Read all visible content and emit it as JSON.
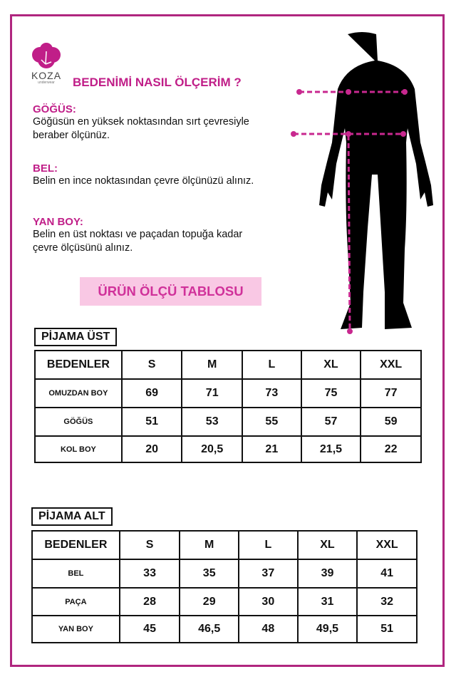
{
  "brand": {
    "name": "KOZA",
    "tagline": "underwear",
    "color": "#c01e88"
  },
  "title": "BEDENİMİ NASIL ÖLÇERİM ?",
  "sections": [
    {
      "heading": "GÖĞÜS:",
      "text": "Göğüsün en yüksek noktasından sırt çevresiyle beraber ölçünüz."
    },
    {
      "heading": "BEL:",
      "text": "Belin en ince noktasından çevre ölçünüzü alınız."
    },
    {
      "heading": "YAN BOY:",
      "text": "Belin en üst noktası ve paçadan topuğa kadar çevre ölçüsünü alınız."
    }
  ],
  "table_title": "ÜRÜN ÖLÇÜ TABLOSU",
  "tables": [
    {
      "label": "PİJAMA ÜST",
      "header": [
        "BEDENLER",
        "S",
        "M",
        "L",
        "XL",
        "XXL"
      ],
      "rows": [
        [
          "OMUZDAN BOY",
          "69",
          "71",
          "73",
          "75",
          "77"
        ],
        [
          "GÖĞÜS",
          "51",
          "53",
          "55",
          "57",
          "59"
        ],
        [
          "KOL BOY",
          "20",
          "20,5",
          "21",
          "21,5",
          "22"
        ]
      ]
    },
    {
      "label": "PİJAMA ALT",
      "header": [
        "BEDENLER",
        "S",
        "M",
        "L",
        "XL",
        "XXL"
      ],
      "rows": [
        [
          "BEL",
          "33",
          "35",
          "37",
          "39",
          "41"
        ],
        [
          "PAÇA",
          "28",
          "29",
          "30",
          "31",
          "32"
        ],
        [
          "YAN BOY",
          "45",
          "46,5",
          "48",
          "49,5",
          "51"
        ]
      ]
    }
  ],
  "colors": {
    "frame": "#b0267f",
    "accent": "#c01e88",
    "highlight": "#f9c8e4"
  }
}
